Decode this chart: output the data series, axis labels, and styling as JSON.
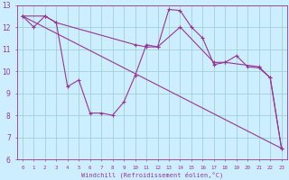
{
  "xlabel": "Windchill (Refroidissement éolien,°C)",
  "xlim": [
    -0.5,
    23.5
  ],
  "ylim": [
    6,
    13
  ],
  "yticks": [
    6,
    7,
    8,
    9,
    10,
    11,
    12,
    13
  ],
  "xticks": [
    0,
    1,
    2,
    3,
    4,
    5,
    6,
    7,
    8,
    9,
    10,
    11,
    12,
    13,
    14,
    15,
    16,
    17,
    18,
    19,
    20,
    21,
    22,
    23
  ],
  "bg_color": "#cceeff",
  "line_color": "#993399",
  "grid_color": "#99cccc",
  "line1_x": [
    0,
    1,
    2,
    3,
    4,
    5,
    6,
    7,
    8,
    9,
    10,
    11,
    12,
    13,
    14,
    15,
    16,
    17,
    18,
    19,
    20,
    21,
    22,
    23
  ],
  "line1_y": [
    12.5,
    12.0,
    12.5,
    12.2,
    9.3,
    9.6,
    8.1,
    8.1,
    8.0,
    8.6,
    9.8,
    11.2,
    11.1,
    12.8,
    12.75,
    12.0,
    11.5,
    10.3,
    10.4,
    10.7,
    10.2,
    10.15,
    9.7,
    6.5
  ],
  "line2_x": [
    0,
    2,
    3,
    10,
    11,
    12,
    14,
    17,
    18,
    21,
    22,
    23
  ],
  "line2_y": [
    12.5,
    12.5,
    12.2,
    11.2,
    11.1,
    11.1,
    12.0,
    10.4,
    10.4,
    10.2,
    9.7,
    6.5
  ],
  "line3_x": [
    0,
    23
  ],
  "line3_y": [
    12.5,
    6.5
  ],
  "figsize": [
    3.2,
    2.0
  ],
  "dpi": 100
}
